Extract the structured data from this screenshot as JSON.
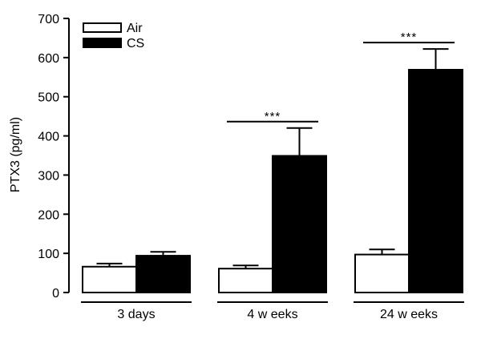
{
  "chart_data": {
    "type": "bar",
    "categories": [
      "3 days",
      "4 w eeks",
      "24 w eeks"
    ],
    "ylabel": "PTX3 (pg/ml)",
    "xlabel": "",
    "ylim": [
      0,
      700
    ],
    "yticks": [
      0,
      100,
      200,
      300,
      400,
      500,
      600,
      700
    ],
    "series": [
      {
        "name": "Air",
        "values": [
          66,
          61,
          97
        ],
        "errors": [
          8,
          8,
          13
        ],
        "fill": "#ffffff"
      },
      {
        "name": "CS",
        "values": [
          94,
          349,
          569
        ],
        "errors": [
          10,
          71,
          53
        ],
        "fill": "#000000"
      }
    ],
    "significance": [
      {
        "category": "3 days",
        "label": ""
      },
      {
        "category": "4 w eeks",
        "label": "***"
      },
      {
        "category": "24 w eeks",
        "label": "***"
      }
    ],
    "legend_position": "top-left",
    "grid": false
  }
}
